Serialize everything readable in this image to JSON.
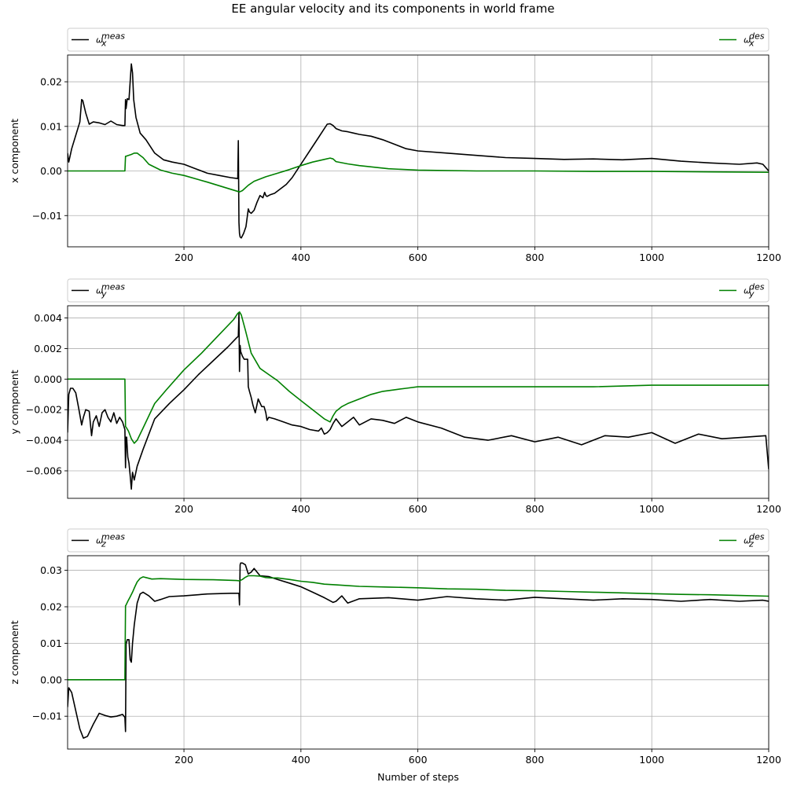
{
  "figure": {
    "title": "EE angular velocity and its components in world frame"
  },
  "colors": {
    "meas": "#000000",
    "des": "#008000",
    "grid": "#b0b0b0",
    "legend_border": "#cccccc"
  },
  "chart_data": [
    {
      "type": "line",
      "title": "",
      "xlabel": "",
      "ylabel": "x component",
      "xlim": [
        1,
        1200
      ],
      "ylim": [
        -0.017,
        0.026
      ],
      "xticks": [
        200,
        400,
        600,
        800,
        1000,
        1200
      ],
      "xtick_labels": [
        "200",
        "400",
        "600",
        "800",
        "1000",
        "1200"
      ],
      "yticks": [
        -0.01,
        0.0,
        0.01,
        0.02
      ],
      "ytick_labels": [
        "−0.01",
        "0.00",
        "0.01",
        "0.02"
      ],
      "grid": true,
      "legend": {
        "placement": "above-plot",
        "entries": [
          {
            "symbol": "ω",
            "sub": "x",
            "sup": "meas"
          },
          {
            "symbol": "ω",
            "sub": "x",
            "sup": "des"
          }
        ]
      },
      "series": [
        {
          "key": "meas",
          "x": [
            1,
            3,
            8,
            15,
            22,
            25,
            27,
            32,
            38,
            45,
            55,
            65,
            75,
            85,
            95,
            99,
            100,
            101,
            103,
            106,
            110,
            112,
            114,
            118,
            125,
            135,
            150,
            165,
            180,
            200,
            220,
            240,
            260,
            280,
            292,
            293,
            294,
            295,
            296,
            298,
            302,
            306,
            310,
            312,
            315,
            320,
            325,
            330,
            335,
            338,
            340,
            342,
            348,
            355,
            365,
            375,
            385,
            400,
            415,
            430,
            445,
            450,
            455,
            460,
            470,
            480,
            490,
            500,
            520,
            540,
            560,
            580,
            600,
            650,
            700,
            750,
            800,
            850,
            900,
            950,
            1000,
            1050,
            1100,
            1150,
            1180,
            1190,
            1200
          ],
          "y": [
            0.004,
            0.002,
            0.005,
            0.008,
            0.011,
            0.016,
            0.0158,
            0.013,
            0.0105,
            0.011,
            0.0108,
            0.0104,
            0.0112,
            0.0104,
            0.0102,
            0.0102,
            0.016,
            0.014,
            0.0162,
            0.016,
            0.024,
            0.022,
            0.016,
            0.012,
            0.0085,
            0.007,
            0.004,
            0.0025,
            0.002,
            0.0015,
            0.0005,
            -0.0005,
            -0.001,
            -0.0015,
            -0.0017,
            0.0068,
            -0.0115,
            -0.014,
            -0.0148,
            -0.015,
            -0.014,
            -0.0125,
            -0.0085,
            -0.0092,
            -0.0095,
            -0.0088,
            -0.007,
            -0.0055,
            -0.006,
            -0.0048,
            -0.0055,
            -0.0057,
            -0.0053,
            -0.005,
            -0.004,
            -0.003,
            -0.0015,
            0.0015,
            0.0045,
            0.0075,
            0.0105,
            0.0106,
            0.0102,
            0.0095,
            0.009,
            0.0088,
            0.0085,
            0.0082,
            0.0078,
            0.007,
            0.006,
            0.005,
            0.0045,
            0.004,
            0.0035,
            0.003,
            0.0028,
            0.0026,
            0.0027,
            0.0025,
            0.0028,
            0.0022,
            0.0018,
            0.0015,
            0.0018,
            0.0015,
            0.0
          ]
        },
        {
          "key": "des",
          "x": [
            1,
            99,
            100,
            101,
            110,
            115,
            120,
            125,
            130,
            140,
            160,
            180,
            200,
            240,
            280,
            295,
            300,
            310,
            320,
            340,
            360,
            380,
            400,
            420,
            440,
            450,
            455,
            460,
            480,
            500,
            550,
            600,
            700,
            800,
            900,
            1000,
            1100,
            1200
          ],
          "y": [
            0.0,
            0.0,
            0.0033,
            0.0033,
            0.0037,
            0.004,
            0.004,
            0.0035,
            0.003,
            0.0015,
            0.0002,
            -0.0005,
            -0.001,
            -0.0025,
            -0.0041,
            -0.0047,
            -0.0044,
            -0.0032,
            -0.0023,
            -0.0013,
            -0.0005,
            0.0003,
            0.0012,
            0.002,
            0.0026,
            0.0029,
            0.0027,
            0.0021,
            0.0016,
            0.0012,
            0.0005,
            0.0002,
            0.0,
            0.0,
            -0.0001,
            -0.0001,
            -0.0002,
            -0.0003
          ]
        }
      ]
    },
    {
      "type": "line",
      "title": "",
      "xlabel": "",
      "ylabel": "y component",
      "xlim": [
        1,
        1200
      ],
      "ylim": [
        -0.0078,
        0.0048
      ],
      "xticks": [
        200,
        400,
        600,
        800,
        1000,
        1200
      ],
      "xtick_labels": [
        "200",
        "400",
        "600",
        "800",
        "1000",
        "1200"
      ],
      "yticks": [
        -0.006,
        -0.004,
        -0.002,
        0.0,
        0.002,
        0.004
      ],
      "ytick_labels": [
        "−0.006",
        "−0.004",
        "−0.002",
        "0.000",
        "0.002",
        "0.004"
      ],
      "grid": true,
      "legend": {
        "placement": "above-plot",
        "entries": [
          {
            "symbol": "ω",
            "sub": "y",
            "sup": "meas"
          },
          {
            "symbol": "ω",
            "sub": "y",
            "sup": "des"
          }
        ]
      },
      "series": [
        {
          "key": "meas",
          "x": [
            1,
            3,
            6,
            10,
            15,
            20,
            25,
            28,
            32,
            38,
            42,
            45,
            50,
            55,
            60,
            65,
            70,
            75,
            80,
            85,
            90,
            95,
            99,
            100,
            101,
            102,
            103,
            104,
            106,
            108,
            110,
            112,
            115,
            120,
            130,
            150,
            175,
            200,
            225,
            250,
            275,
            290,
            293,
            294,
            295,
            296,
            297,
            300,
            303,
            306,
            309,
            310,
            312,
            315,
            318,
            322,
            327,
            333,
            337,
            340,
            342,
            345,
            355,
            370,
            385,
            400,
            415,
            430,
            435,
            440,
            445,
            450,
            455,
            460,
            470,
            480,
            490,
            500,
            520,
            540,
            560,
            580,
            600,
            640,
            680,
            720,
            760,
            800,
            840,
            880,
            920,
            960,
            1000,
            1040,
            1080,
            1120,
            1160,
            1195,
            1200
          ],
          "y": [
            -0.0035,
            -0.001,
            -0.0006,
            -0.0006,
            -0.0009,
            -0.0019,
            -0.003,
            -0.0025,
            -0.002,
            -0.0021,
            -0.0037,
            -0.0028,
            -0.0024,
            -0.0031,
            -0.0022,
            -0.002,
            -0.0025,
            -0.0028,
            -0.0022,
            -0.0029,
            -0.0025,
            -0.0028,
            -0.0033,
            -0.0058,
            -0.0038,
            -0.0038,
            -0.0045,
            -0.0051,
            -0.0055,
            -0.0063,
            -0.0072,
            -0.0061,
            -0.0066,
            -0.0057,
            -0.0046,
            -0.0026,
            -0.0016,
            -0.0007,
            0.0003,
            0.0012,
            0.0021,
            0.0027,
            0.0028,
            0.0043,
            0.0005,
            0.0022,
            0.0018,
            0.0015,
            0.0013,
            0.0013,
            0.0013,
            -0.0005,
            -0.0008,
            -0.0012,
            -0.0017,
            -0.0022,
            -0.0013,
            -0.0018,
            -0.0018,
            -0.0022,
            -0.0027,
            -0.0025,
            -0.0026,
            -0.0028,
            -0.003,
            -0.0031,
            -0.0033,
            -0.0034,
            -0.0032,
            -0.0036,
            -0.0035,
            -0.0033,
            -0.0029,
            -0.0026,
            -0.0031,
            -0.0028,
            -0.0025,
            -0.003,
            -0.0026,
            -0.0027,
            -0.0029,
            -0.0025,
            -0.0028,
            -0.0032,
            -0.0038,
            -0.004,
            -0.0037,
            -0.0041,
            -0.0038,
            -0.0043,
            -0.0037,
            -0.0038,
            -0.0035,
            -0.0042,
            -0.0036,
            -0.0039,
            -0.0038,
            -0.0037,
            -0.0059
          ]
        },
        {
          "key": "des",
          "x": [
            1,
            99,
            100,
            102,
            105,
            110,
            115,
            120,
            130,
            140,
            150,
            170,
            200,
            230,
            260,
            285,
            292,
            295,
            298,
            305,
            315,
            330,
            345,
            360,
            380,
            400,
            420,
            440,
            450,
            455,
            460,
            470,
            480,
            500,
            520,
            540,
            560,
            580,
            600,
            650,
            700,
            800,
            900,
            1000,
            1100,
            1200
          ],
          "y": [
            0.0,
            0.0,
            -0.0031,
            -0.0032,
            -0.0034,
            -0.0039,
            -0.0042,
            -0.004,
            -0.0032,
            -0.0024,
            -0.0016,
            -0.0007,
            0.0006,
            0.0017,
            0.0029,
            0.0039,
            0.0043,
            0.0044,
            0.0042,
            0.0032,
            0.0017,
            0.0007,
            0.0003,
            -0.0001,
            -0.0008,
            -0.0014,
            -0.002,
            -0.0026,
            -0.0028,
            -0.0024,
            -0.0021,
            -0.0018,
            -0.0016,
            -0.0013,
            -0.001,
            -0.0008,
            -0.0007,
            -0.0006,
            -0.0005,
            -0.0005,
            -0.0005,
            -0.0005,
            -0.0005,
            -0.0004,
            -0.0004,
            -0.0004
          ]
        }
      ]
    },
    {
      "type": "line",
      "title": "",
      "xlabel": "Number of steps",
      "ylabel": "z component",
      "xlim": [
        1,
        1200
      ],
      "ylim": [
        -0.019,
        0.034
      ],
      "xticks": [
        200,
        400,
        600,
        800,
        1000,
        1200
      ],
      "xtick_labels": [
        "200",
        "400",
        "600",
        "800",
        "1000",
        "1200"
      ],
      "yticks": [
        -0.01,
        0.0,
        0.01,
        0.02,
        0.03
      ],
      "ytick_labels": [
        "−0.01",
        "0.00",
        "0.01",
        "0.02",
        "0.03"
      ],
      "grid": true,
      "legend": {
        "placement": "above-plot",
        "entries": [
          {
            "symbol": "ω",
            "sub": "z",
            "sup": "meas"
          },
          {
            "symbol": "ω",
            "sub": "z",
            "sup": "des"
          }
        ]
      },
      "series": [
        {
          "key": "meas",
          "x": [
            1,
            3,
            8,
            15,
            22,
            28,
            35,
            45,
            55,
            65,
            75,
            85,
            95,
            99,
            100,
            101,
            103,
            106,
            108,
            110,
            112,
            115,
            120,
            125,
            130,
            140,
            150,
            160,
            175,
            200,
            240,
            280,
            294,
            295,
            296,
            297,
            300,
            305,
            310,
            315,
            320,
            330,
            345,
            360,
            380,
            400,
            420,
            440,
            455,
            460,
            470,
            480,
            500,
            550,
            600,
            650,
            700,
            750,
            800,
            850,
            900,
            950,
            1000,
            1050,
            1100,
            1150,
            1190,
            1200
          ],
          "y": [
            -0.0075,
            -0.0022,
            -0.0035,
            -0.0085,
            -0.0135,
            -0.016,
            -0.0155,
            -0.0122,
            -0.0092,
            -0.0098,
            -0.0102,
            -0.01,
            -0.0095,
            -0.0103,
            -0.0142,
            0.0098,
            0.011,
            0.011,
            0.0055,
            0.0048,
            0.01,
            0.015,
            0.021,
            0.0235,
            0.024,
            0.023,
            0.0215,
            0.022,
            0.0228,
            0.023,
            0.0235,
            0.0237,
            0.0237,
            0.0205,
            0.0315,
            0.032,
            0.032,
            0.0315,
            0.029,
            0.0295,
            0.0305,
            0.0285,
            0.0283,
            0.0275,
            0.0265,
            0.0255,
            0.024,
            0.0225,
            0.0212,
            0.0215,
            0.023,
            0.021,
            0.0222,
            0.0225,
            0.0218,
            0.0228,
            0.0222,
            0.0218,
            0.0226,
            0.0222,
            0.0218,
            0.0222,
            0.022,
            0.0215,
            0.022,
            0.0215,
            0.0218,
            0.0215
          ]
        },
        {
          "key": "des",
          "x": [
            1,
            99,
            100,
            101,
            104,
            108,
            112,
            116,
            120,
            125,
            130,
            135,
            145,
            160,
            200,
            250,
            290,
            295,
            300,
            305,
            310,
            320,
            330,
            340,
            350,
            360,
            380,
            400,
            420,
            440,
            460,
            480,
            500,
            550,
            600,
            650,
            700,
            750,
            800,
            850,
            900,
            950,
            1000,
            1050,
            1100,
            1150,
            1200
          ],
          "y": [
            0.0,
            0.0,
            0.0203,
            0.0205,
            0.0215,
            0.0227,
            0.024,
            0.0255,
            0.0268,
            0.0278,
            0.0282,
            0.028,
            0.0276,
            0.0277,
            0.0275,
            0.0274,
            0.0272,
            0.0271,
            0.0275,
            0.0281,
            0.0285,
            0.0285,
            0.0284,
            0.028,
            0.0279,
            0.0279,
            0.0275,
            0.027,
            0.0267,
            0.0262,
            0.026,
            0.0258,
            0.0256,
            0.0254,
            0.0252,
            0.0249,
            0.0248,
            0.0245,
            0.0244,
            0.0242,
            0.024,
            0.0238,
            0.0236,
            0.0234,
            0.0233,
            0.0231,
            0.0229
          ]
        }
      ]
    }
  ]
}
